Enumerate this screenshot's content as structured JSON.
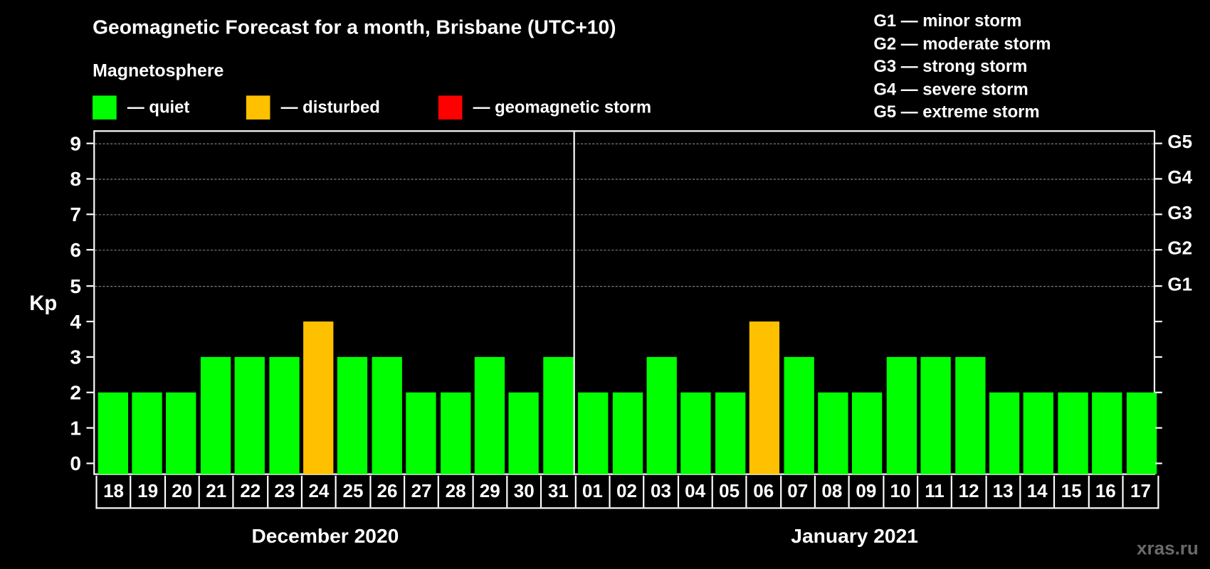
{
  "title": "Geomagnetic Forecast for a month, Brisbane (UTC+10)",
  "subtitle": "Magnetosphere",
  "legend": [
    {
      "label": "— quiet",
      "color": "#00ff00"
    },
    {
      "label": "— disturbed",
      "color": "#ffc000"
    },
    {
      "label": "— geomagnetic storm",
      "color": "#ff0000"
    }
  ],
  "storm_scale": [
    "G1 — minor storm",
    "G2 — moderate storm",
    "G3 — strong storm",
    "G4 — severe storm",
    "G5 — extreme storm"
  ],
  "y_axis": {
    "label": "Kp",
    "ticks": [
      "0",
      "1",
      "2",
      "3",
      "4",
      "5",
      "6",
      "7",
      "8",
      "9"
    ]
  },
  "right_axis": {
    "ticks": [
      {
        "kp": 5,
        "label": "G1"
      },
      {
        "kp": 6,
        "label": "G2"
      },
      {
        "kp": 7,
        "label": "G3"
      },
      {
        "kp": 8,
        "label": "G4"
      },
      {
        "kp": 9,
        "label": "G5"
      }
    ]
  },
  "months": [
    {
      "label": "December 2020"
    },
    {
      "label": "January 2021"
    }
  ],
  "watermark": "xras.ru",
  "chart_data": {
    "type": "bar",
    "title": "Geomagnetic Forecast for a month, Brisbane (UTC+10)",
    "xlabel": "",
    "ylabel": "Kp",
    "ylim": [
      0,
      9
    ],
    "grid": true,
    "legend_position": "top",
    "categories": [
      "18",
      "19",
      "20",
      "21",
      "22",
      "23",
      "24",
      "25",
      "26",
      "27",
      "28",
      "29",
      "30",
      "31",
      "01",
      "02",
      "03",
      "04",
      "05",
      "06",
      "07",
      "08",
      "09",
      "10",
      "11",
      "12",
      "13",
      "14",
      "15",
      "16",
      "17"
    ],
    "category_groups": [
      {
        "label": "December 2020",
        "range": [
          "18",
          "31"
        ]
      },
      {
        "label": "January 2021",
        "range": [
          "01",
          "17"
        ]
      }
    ],
    "series": [
      {
        "name": "Kp",
        "values": [
          2,
          2,
          2,
          3,
          3,
          3,
          4,
          3,
          3,
          2,
          2,
          3,
          2,
          3,
          2,
          2,
          3,
          2,
          2,
          4,
          3,
          2,
          2,
          3,
          3,
          3,
          2,
          2,
          2,
          2,
          2
        ],
        "status": [
          "quiet",
          "quiet",
          "quiet",
          "quiet",
          "quiet",
          "quiet",
          "disturbed",
          "quiet",
          "quiet",
          "quiet",
          "quiet",
          "quiet",
          "quiet",
          "quiet",
          "quiet",
          "quiet",
          "quiet",
          "quiet",
          "quiet",
          "disturbed",
          "quiet",
          "quiet",
          "quiet",
          "quiet",
          "quiet",
          "quiet",
          "quiet",
          "quiet",
          "quiet",
          "quiet",
          "quiet"
        ]
      }
    ],
    "status_colors": {
      "quiet": "#00ff00",
      "disturbed": "#ffc000",
      "storm": "#ff0000"
    },
    "right_axis_labels": {
      "5": "G1",
      "6": "G2",
      "7": "G3",
      "8": "G4",
      "9": "G5"
    }
  }
}
